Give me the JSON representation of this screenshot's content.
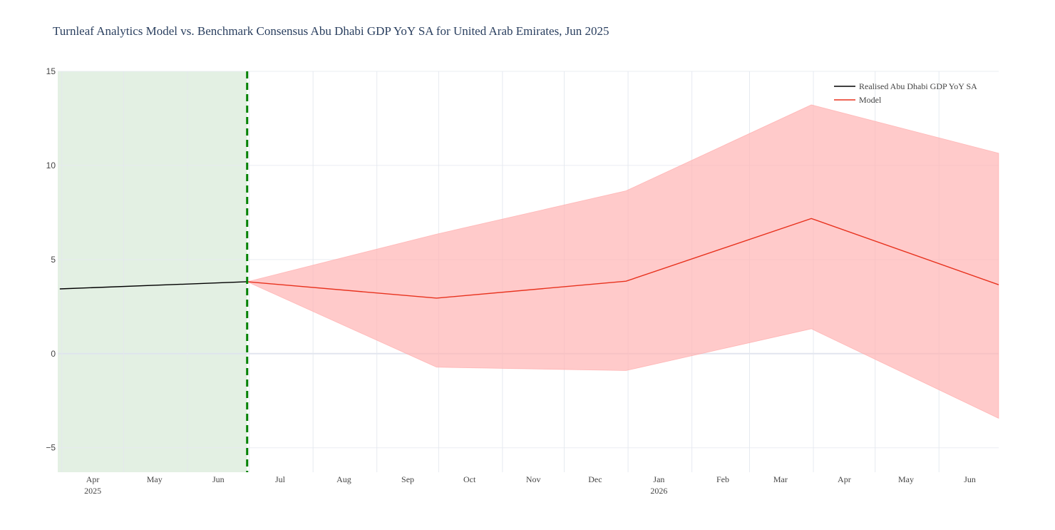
{
  "chart_data": {
    "type": "line",
    "title": "Turnleaf Analytics Model vs. Benchmark Consensus Abu Dhabi GDP YoY SA for United Arab Emirates, Jun 2025",
    "xlabel": "",
    "ylabel": "",
    "xlim": [
      "2025-03-30",
      "2026-06-30"
    ],
    "ylim": [
      -6.3,
      15
    ],
    "yticks": [
      -5,
      0,
      5,
      10,
      15
    ],
    "ytick_labels": [
      "−5",
      "0",
      "5",
      "10",
      "15"
    ],
    "xticks": [
      {
        "date": "2025-04-01",
        "label": "Apr",
        "year": "2025"
      },
      {
        "date": "2025-05-01",
        "label": "May",
        "year": ""
      },
      {
        "date": "2025-06-01",
        "label": "Jun",
        "year": ""
      },
      {
        "date": "2025-07-01",
        "label": "Jul",
        "year": ""
      },
      {
        "date": "2025-08-01",
        "label": "Aug",
        "year": ""
      },
      {
        "date": "2025-09-01",
        "label": "Sep",
        "year": ""
      },
      {
        "date": "2025-10-01",
        "label": "Oct",
        "year": ""
      },
      {
        "date": "2025-11-01",
        "label": "Nov",
        "year": ""
      },
      {
        "date": "2025-12-01",
        "label": "Dec",
        "year": ""
      },
      {
        "date": "2026-01-01",
        "label": "Jan",
        "year": "2026"
      },
      {
        "date": "2026-02-01",
        "label": "Feb",
        "year": ""
      },
      {
        "date": "2026-03-01",
        "label": "Mar",
        "year": ""
      },
      {
        "date": "2026-04-01",
        "label": "Apr",
        "year": ""
      },
      {
        "date": "2026-05-01",
        "label": "May",
        "year": ""
      },
      {
        "date": "2026-06-01",
        "label": "Jun",
        "year": ""
      }
    ],
    "grid": true,
    "legend_position": "top-right",
    "shaded_region": {
      "from": "2025-03-30",
      "to": "2025-06-30",
      "color": "#e3f0e3"
    },
    "vline": {
      "date": "2025-06-30",
      "color": "#008000",
      "style": "dashed"
    },
    "series": [
      {
        "name": "Realised Abu Dhabi GDP YoY SA",
        "color": "#000000",
        "x": [
          "2025-03-31",
          "2025-06-30"
        ],
        "y": [
          3.44,
          3.82
        ]
      },
      {
        "name": "Model",
        "color": "#e8321e",
        "x": [
          "2025-06-30",
          "2025-09-30",
          "2025-12-31",
          "2026-03-31",
          "2026-06-30"
        ],
        "y": [
          3.82,
          2.95,
          3.85,
          7.18,
          3.66
        ],
        "upper": [
          3.82,
          6.35,
          8.65,
          13.22,
          10.65
        ],
        "lower": [
          3.82,
          -0.72,
          -0.9,
          1.32,
          -3.44
        ],
        "band_color": "#ffb3b3"
      }
    ]
  }
}
